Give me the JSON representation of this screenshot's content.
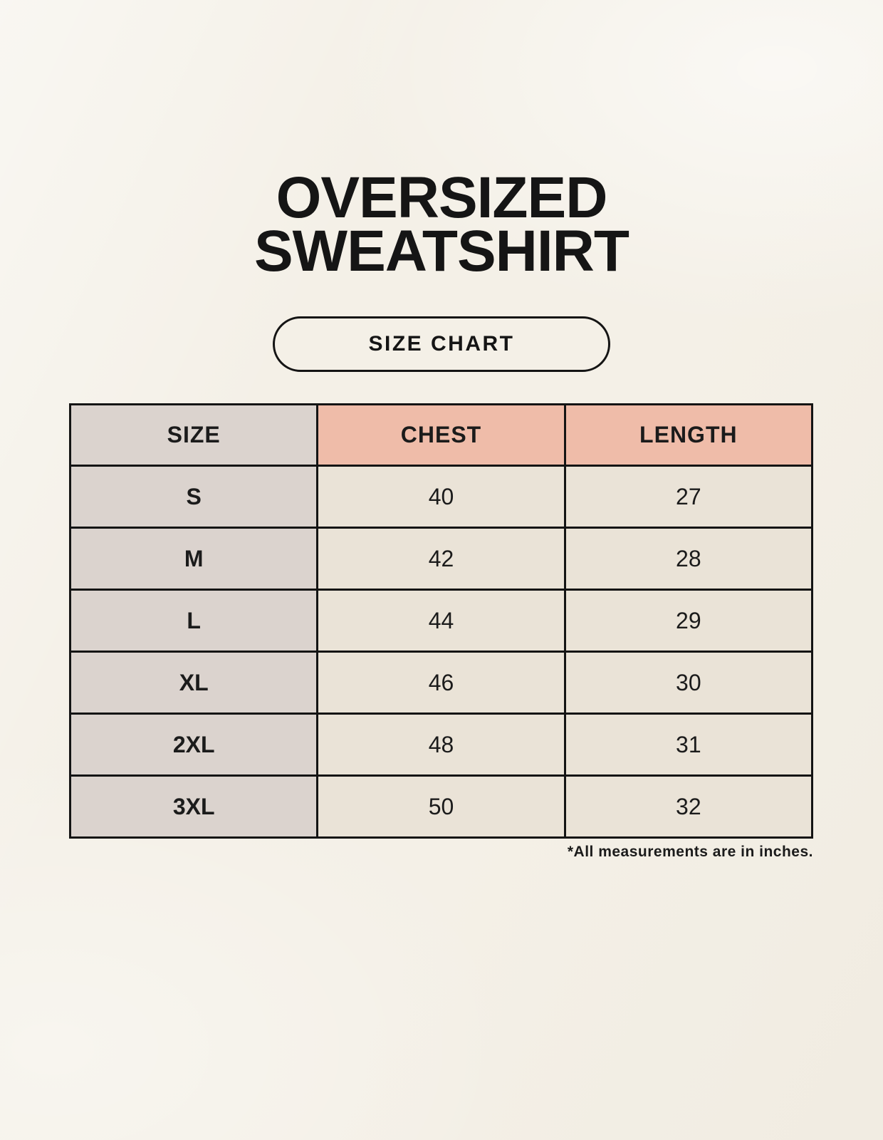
{
  "page": {
    "title_lines": [
      "OVERSIZED",
      "SWEATSHIRT"
    ],
    "size_chart_label": "SIZE CHART",
    "footnote": "*All measurements are in inches."
  },
  "colors": {
    "background": "#f4f0e7",
    "header_size_bg": "#dbd3ce",
    "header_measure_bg": "#efbca9",
    "row_label_bg": "#dbd3ce",
    "cell_bg": "#eae3d7",
    "border": "#141414",
    "text": "#151515"
  },
  "chart_data": {
    "type": "table",
    "title": "OVERSIZED SWEATSHIRT",
    "subtitle": "SIZE CHART",
    "columns": [
      "SIZE",
      "CHEST",
      "LENGTH"
    ],
    "rows": [
      [
        "S",
        40,
        27
      ],
      [
        "M",
        42,
        28
      ],
      [
        "L",
        44,
        29
      ],
      [
        "XL",
        46,
        30
      ],
      [
        "2XL",
        48,
        31
      ],
      [
        "3XL",
        50,
        32
      ]
    ],
    "units": "inches",
    "note": "*All measurements are in inches."
  }
}
